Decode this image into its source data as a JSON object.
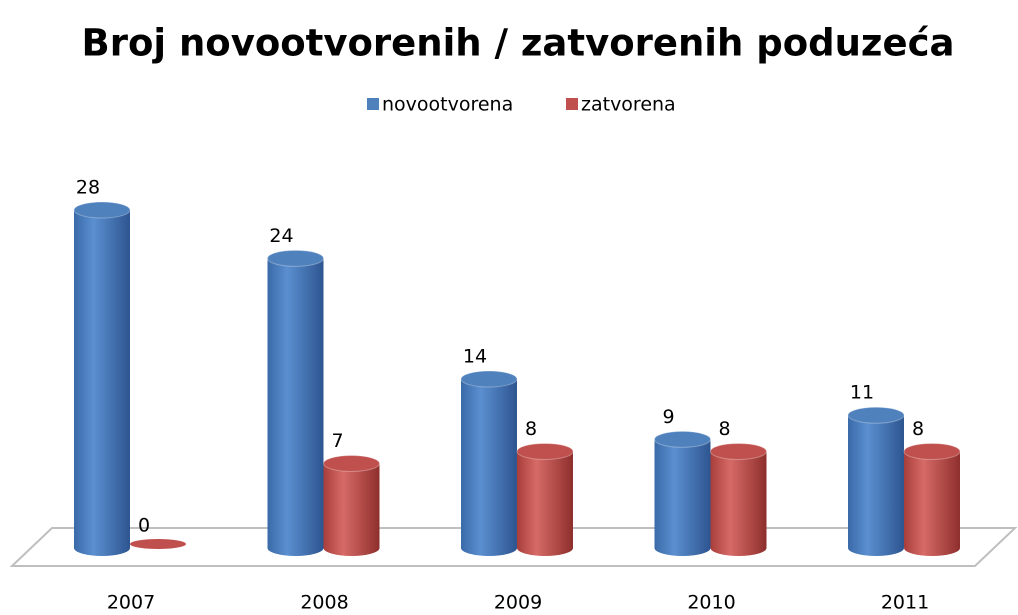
{
  "chart_data": {
    "type": "bar3d",
    "title": "Broj novootvorenih / zatvorenih poduzeća",
    "categories": [
      "2007",
      "2008",
      "2009",
      "2010",
      "2011"
    ],
    "series": [
      {
        "name": "novootvorena",
        "color": "#4f81bd",
        "values": [
          28,
          24,
          14,
          9,
          11
        ]
      },
      {
        "name": "zatvorena",
        "color": "#c0504d",
        "values": [
          0,
          7,
          8,
          8,
          8
        ]
      }
    ],
    "legend": "top"
  }
}
